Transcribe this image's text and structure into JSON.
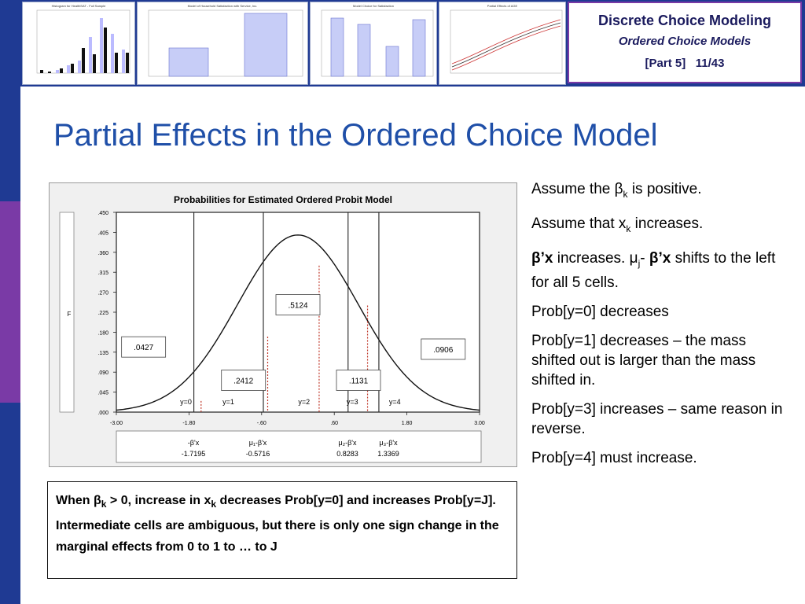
{
  "header": {
    "deck_title": "Discrete Choice Modeling",
    "deck_subtitle": "Ordered Choice Models",
    "part": "[Part 5]",
    "page": "11/43",
    "thumbs": [
      {
        "title": "Histogram for HealthSAT - Full Sample"
      },
      {
        "title": "Model of Household Satisfaction with Service, Inc."
      },
      {
        "title": "Model Choice for Satisfaction"
      },
      {
        "title": "Partial Effects of AGE"
      }
    ]
  },
  "slide": {
    "title": "Partial Effects in the Ordered Choice Model"
  },
  "chart": {
    "title": "Probabilities for Estimated Ordered Probit Model",
    "ylabel": "F",
    "yticks": [
      ".450",
      ".405",
      ".360",
      ".315",
      ".270",
      ".225",
      ".180",
      ".135",
      ".090",
      ".045",
      ".000"
    ],
    "xticks": [
      "-3.00",
      "-1.80",
      "-.60",
      ".60",
      "1.80",
      "3.00"
    ],
    "cell_values": [
      ".0427",
      ".2412",
      ".5124",
      ".1131",
      ".0906"
    ],
    "cell_labels": [
      "y=0",
      "y=1",
      "y=2",
      "y=3",
      "y=4"
    ],
    "thresholds": [
      {
        "label": "-β'x",
        "value": "-1.7195"
      },
      {
        "label": "μ₁-β'x",
        "value": "-0.5716"
      },
      {
        "label": "μ₂-β'x",
        "value": "0.8283"
      },
      {
        "label": "μ₃-β'x",
        "value": "1.3369"
      }
    ]
  },
  "chart_data": {
    "type": "line",
    "title": "Probabilities for Estimated Ordered Probit Model",
    "xlabel": "",
    "ylabel": "F",
    "xlim": [
      -3.0,
      3.0
    ],
    "ylim": [
      0.0,
      0.45
    ],
    "series": [
      {
        "curve": "standard normal density",
        "peak": 0.399
      }
    ],
    "cutpoints": [
      -1.7195,
      -0.5716,
      0.8283,
      1.3369
    ],
    "cell_probabilities": [
      0.0427,
      0.2412,
      0.5124,
      0.1131,
      0.0906
    ],
    "grid": false
  },
  "caption": {
    "line1_a": "When β",
    "line1_sub": "k",
    "line1_b": " > 0, increase in x",
    "line1_sub2": "k",
    "line1_c": " decreases Prob[y=0]",
    "rest": "and increases Prob[y=J]. Intermediate cells are ambiguous, but there is only one sign change in the marginal effects from 0 to 1 to … to J"
  },
  "right": {
    "p1_a": "Assume the β",
    "p1_sub": "k",
    "p1_b": " is positive.",
    "p2_a": "Assume that x",
    "p2_sub": "k",
    "p2_b": " increases.",
    "p3_bold1": "β’x",
    "p3_a": " increases. μ",
    "p3_sub": "j",
    "p3_b": "- ",
    "p3_bold2": "β’x",
    "p3_c": " shifts to the left for all 5 cells.",
    "p4": "Prob[y=0] decreases",
    "p5": "Prob[y=1] decreases – the mass shifted out is larger than the mass shifted in.",
    "p6": "Prob[y=3] increases – same reason in reverse.",
    "p7": "Prob[y=4] must increase."
  }
}
